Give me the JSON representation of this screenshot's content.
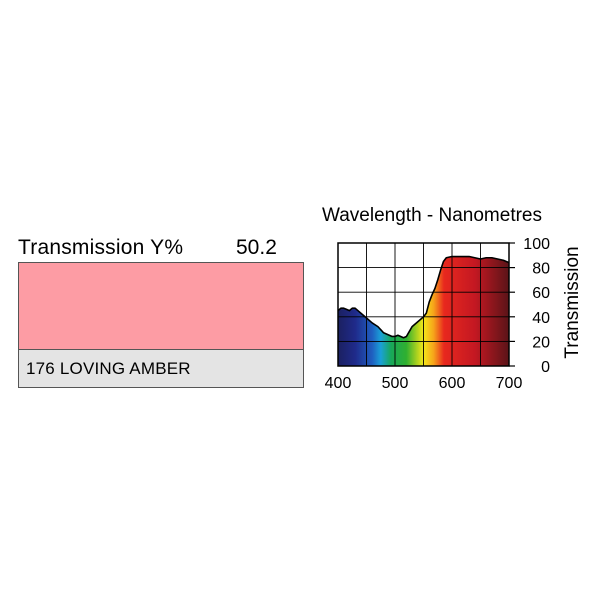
{
  "filter": {
    "transmission_label": "Transmission Y%",
    "transmission_value": "50.2",
    "name": "176 LOVING AMBER",
    "swatch_color": "#fd9ca4",
    "name_background": "#e4e4e4"
  },
  "chart_data": {
    "type": "area",
    "title": "Wavelength - Nanometres",
    "xlabel": "",
    "ylabel": "Transmission",
    "xlim": [
      400,
      700
    ],
    "ylim": [
      0,
      100
    ],
    "x_ticks": [
      400,
      500,
      600,
      700
    ],
    "y_ticks": [
      0,
      20,
      40,
      60,
      80,
      100
    ],
    "grid": true,
    "fill": "visible-spectrum-gradient",
    "series": [
      {
        "x": [
          400,
          405,
          410,
          415,
          420,
          425,
          430,
          440,
          450,
          460,
          470,
          480,
          490,
          495,
          500,
          505,
          510,
          515,
          520,
          525,
          530,
          540,
          550,
          555,
          560,
          565,
          570,
          575,
          580,
          585,
          590,
          600,
          610,
          620,
          630,
          640,
          650,
          660,
          670,
          680,
          690,
          700
        ],
        "values": [
          45,
          47,
          47,
          46,
          45,
          47,
          47,
          43,
          39,
          35,
          32,
          27,
          25,
          24,
          24,
          25,
          24,
          23,
          24,
          28,
          32,
          36,
          40,
          43,
          52,
          58,
          63,
          70,
          78,
          85,
          88,
          89,
          89,
          89,
          89,
          88,
          87,
          88,
          88,
          87,
          86,
          84
        ]
      }
    ]
  }
}
